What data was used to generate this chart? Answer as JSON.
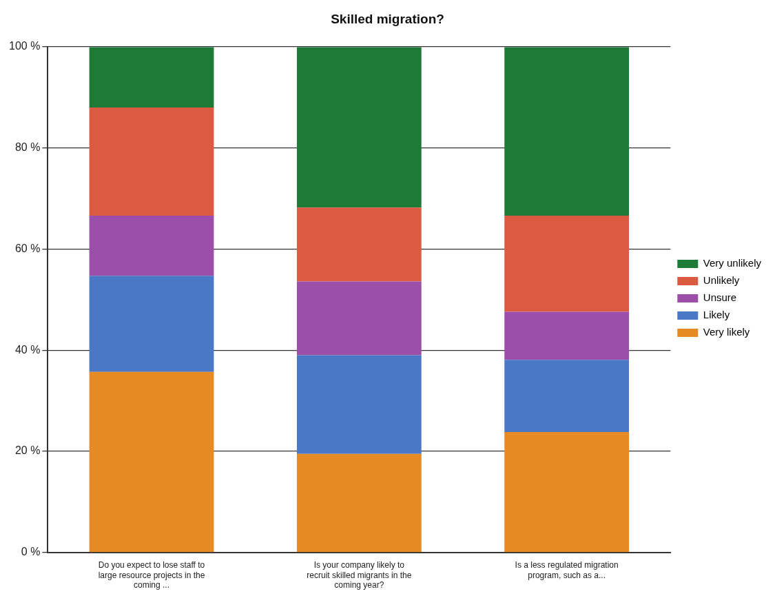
{
  "chart_data": {
    "type": "bar",
    "title": "Skilled migration?",
    "stacked": true,
    "categories": [
      "Do you expect to lose staff to large resource projects in the coming ...",
      "Is your company likely to recruit skilled migrants in the coming year?",
      "Is a less regulated migration program, such as a..."
    ],
    "series": [
      {
        "name": "Very likely",
        "color": "#e58a24",
        "values": [
          35.7,
          19.5,
          23.8
        ]
      },
      {
        "name": "Likely",
        "color": "#4a78c6",
        "values": [
          19.0,
          19.5,
          14.3
        ]
      },
      {
        "name": "Unsure",
        "color": "#9b4fa8",
        "values": [
          11.9,
          14.6,
          9.5
        ]
      },
      {
        "name": "Unlikely",
        "color": "#dc5a42",
        "values": [
          21.4,
          14.6,
          19.0
        ]
      },
      {
        "name": "Very unlikely",
        "color": "#1e7a36",
        "values": [
          11.9,
          31.7,
          33.3
        ]
      }
    ],
    "ylim": [
      0,
      100
    ],
    "yticks": [
      {
        "value": 0,
        "label": "0 %"
      },
      {
        "value": 20,
        "label": "20 %"
      },
      {
        "value": 40,
        "label": "40 %"
      },
      {
        "value": 60,
        "label": "60 %"
      },
      {
        "value": 80,
        "label": "80 %"
      },
      {
        "value": 100,
        "label": "100 %"
      }
    ],
    "grid": "y",
    "legend": "right"
  }
}
